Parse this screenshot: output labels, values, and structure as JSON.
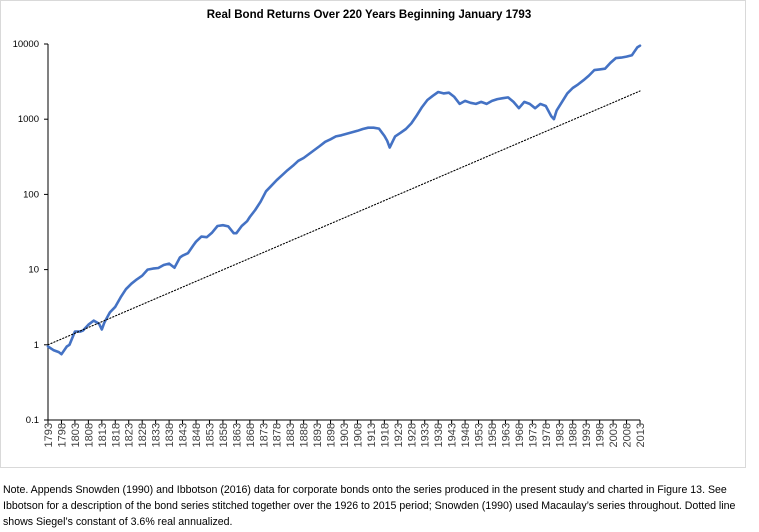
{
  "chart_data": {
    "type": "line",
    "title": "Real Bond Returns Over 220 Years Beginning January 1793",
    "xlabel": "",
    "ylabel": "",
    "y_scale": "log",
    "ylim": [
      0.1,
      10000
    ],
    "y_ticks": [
      "0.1",
      "1",
      "10",
      "100",
      "1000",
      "10000"
    ],
    "x_ticks": [
      "1793",
      "1798",
      "1803",
      "1808",
      "1813",
      "1818",
      "1823",
      "1828",
      "1833",
      "1838",
      "1843",
      "1848",
      "1853",
      "1858",
      "1863",
      "1868",
      "1873",
      "1878",
      "1883",
      "1888",
      "1893",
      "1898",
      "1903",
      "1908",
      "1913",
      "1918",
      "1923",
      "1928",
      "1933",
      "1938",
      "1943",
      "1948",
      "1953",
      "1958",
      "1963",
      "1968",
      "1973",
      "1978",
      "1983",
      "1988",
      "1993",
      "1998",
      "2003",
      "2008",
      "2013"
    ],
    "xlim": [
      1793,
      2013
    ],
    "grid": false,
    "legend": "none",
    "series": [
      {
        "style": "solid",
        "color": "#4472c4",
        "x": [
          1793,
          1795,
          1797,
          1798,
          1800,
          1801,
          1803,
          1805,
          1806,
          1808,
          1810,
          1812,
          1813,
          1814,
          1816,
          1818,
          1820,
          1822,
          1824,
          1826,
          1828,
          1830,
          1832,
          1834,
          1836,
          1838,
          1840,
          1842,
          1843,
          1845,
          1847,
          1848,
          1850,
          1852,
          1854,
          1856,
          1858,
          1860,
          1862,
          1863,
          1865,
          1867,
          1868,
          1870,
          1872,
          1874,
          1876,
          1878,
          1880,
          1882,
          1884,
          1886,
          1888,
          1890,
          1892,
          1894,
          1896,
          1898,
          1900,
          1902,
          1904,
          1906,
          1908,
          1910,
          1912,
          1914,
          1916,
          1918,
          1919,
          1920,
          1922,
          1924,
          1926,
          1928,
          1930,
          1932,
          1934,
          1936,
          1938,
          1940,
          1942,
          1944,
          1946,
          1948,
          1950,
          1952,
          1954,
          1956,
          1958,
          1960,
          1962,
          1964,
          1966,
          1968,
          1970,
          1972,
          1974,
          1976,
          1978,
          1980,
          1981,
          1982,
          1984,
          1986,
          1988,
          1990,
          1992,
          1994,
          1996,
          1998,
          2000,
          2002,
          2004,
          2006,
          2008,
          2010,
          2012,
          2013
        ],
        "y": [
          0.95,
          0.85,
          0.8,
          0.75,
          0.95,
          1.0,
          1.5,
          1.5,
          1.55,
          1.85,
          2.1,
          1.9,
          1.6,
          2.0,
          2.7,
          3.2,
          4.3,
          5.5,
          6.5,
          7.4,
          8.3,
          10.0,
          10.3,
          10.5,
          11.5,
          12.0,
          10.6,
          14.5,
          15.3,
          16.5,
          21.0,
          23.5,
          27.5,
          27.0,
          31.0,
          38.0,
          39.0,
          37.5,
          30.5,
          30.5,
          38.0,
          44.0,
          50.0,
          62.0,
          80.0,
          110.0,
          130.0,
          155.0,
          180.0,
          210.0,
          240.0,
          280.0,
          305.0,
          345.0,
          390.0,
          440.0,
          500.0,
          540.0,
          590.0,
          610.0,
          640.0,
          670.0,
          700.0,
          740.0,
          770.0,
          770.0,
          750.0,
          600.0,
          520.0,
          420.0,
          590.0,
          660.0,
          740.0,
          880.0,
          1120.0,
          1450.0,
          1800.0,
          2050.0,
          2300.0,
          2200.0,
          2250.0,
          1980.0,
          1600.0,
          1750.0,
          1650.0,
          1600.0,
          1700.0,
          1600.0,
          1750.0,
          1850.0,
          1900.0,
          1950.0,
          1700.0,
          1400.0,
          1700.0,
          1600.0,
          1400.0,
          1600.0,
          1500.0,
          1100.0,
          1000.0,
          1300.0,
          1700.0,
          2200.0,
          2600.0,
          2900.0,
          3300.0,
          3800.0,
          4500.0,
          4600.0,
          4700.0,
          5600.0,
          6500.0,
          6600.0,
          6800.0,
          7100.0,
          9000.0,
          9500.0
        ]
      },
      {
        "style": "dotted",
        "color": "#000000",
        "x": [
          1793,
          2013
        ],
        "y": [
          1.0,
          2370.0
        ]
      }
    ]
  },
  "note": "Note. Appends Snowden (1990) and Ibbotson (2016) data for corporate bonds onto the series produced in the present study and charted in Figure 13. See Ibbotson for a description of the bond series stitched together over the 1926 to 2015 period; Snowden (1990) used Macaulay’s series throughout. Dotted line shows Siegel’s constant of 3.6% real annualized."
}
